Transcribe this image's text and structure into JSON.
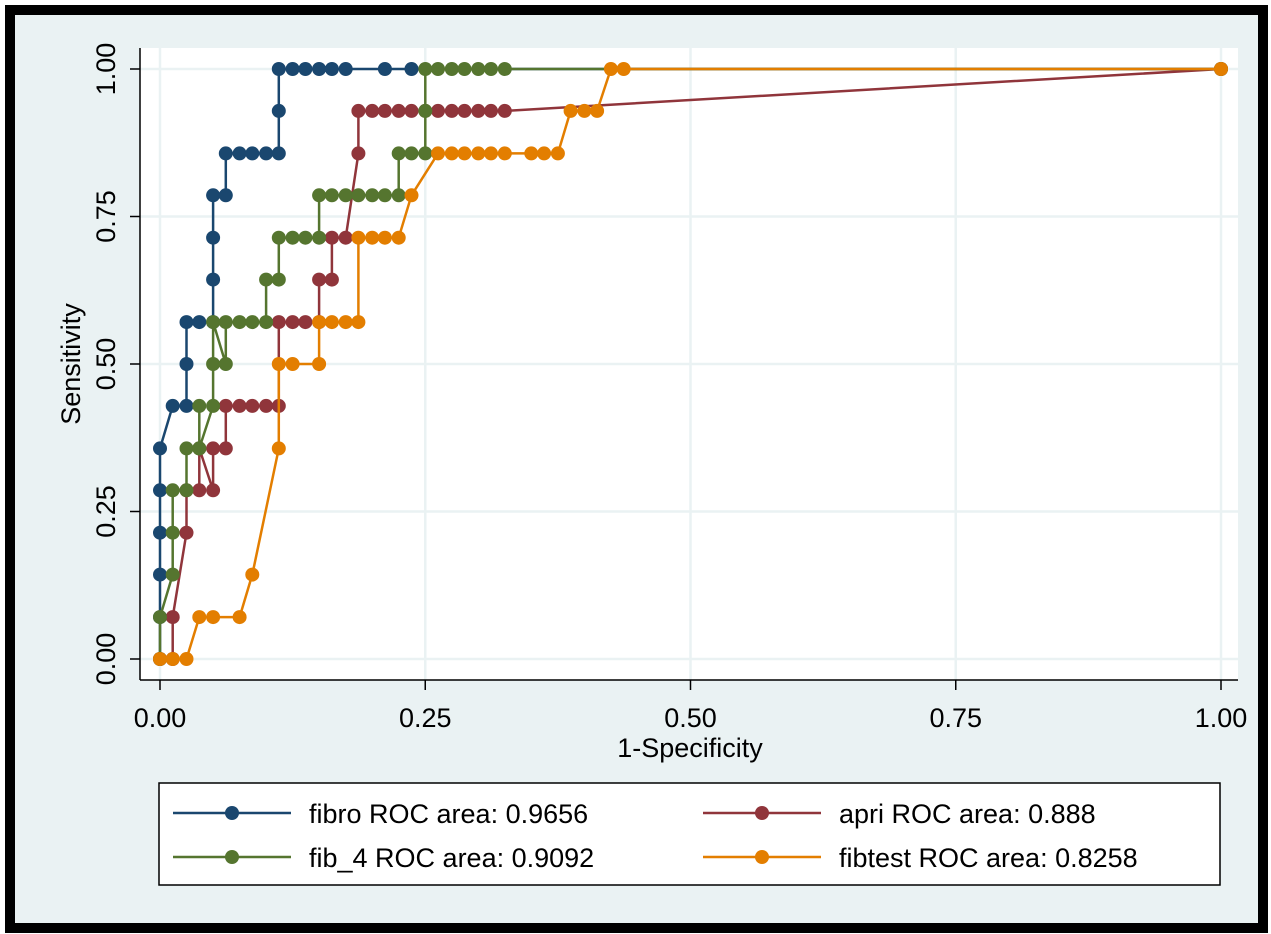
{
  "chart_data": {
    "type": "line",
    "title": "",
    "xlabel": "1-Specificity",
    "ylabel": "Sensitivity",
    "xlim": [
      0,
      1
    ],
    "ylim": [
      0,
      1
    ],
    "xticks": [
      "0.00",
      "0.25",
      "0.50",
      "0.75",
      "1.00"
    ],
    "yticks": [
      "0.00",
      "0.25",
      "0.50",
      "0.75",
      "1.00"
    ],
    "grid": true,
    "legend_position": "bottom",
    "colors": {
      "frame_bg": "#eaf2f3",
      "plot_bg": "#ffffff",
      "grid": "#eaf2f3"
    },
    "series": [
      {
        "name": "fibro ROC area: 0.9656",
        "color": "#1a476f",
        "x": [
          0,
          0,
          0,
          0,
          0,
          0,
          0.012,
          0.025,
          0.025,
          0.025,
          0.037,
          0.05,
          0.05,
          0.05,
          0.05,
          0.062,
          0.062,
          0.075,
          0.087,
          0.1,
          0.112,
          0.112,
          0.112,
          0.125,
          0.137,
          0.15,
          0.162,
          0.175,
          0.212,
          0.237,
          1
        ],
        "y": [
          0,
          0.071,
          0.143,
          0.214,
          0.286,
          0.357,
          0.429,
          0.429,
          0.5,
          0.571,
          0.571,
          0.571,
          0.643,
          0.714,
          0.786,
          0.786,
          0.857,
          0.857,
          0.857,
          0.857,
          0.857,
          0.929,
          1,
          1,
          1,
          1,
          1,
          1,
          1,
          1,
          1
        ]
      },
      {
        "name": "apri ROC area: 0.888",
        "color": "#90353b",
        "x": [
          0,
          0.012,
          0.012,
          0.025,
          0.025,
          0.037,
          0.037,
          0.05,
          0.05,
          0.062,
          0.062,
          0.075,
          0.087,
          0.1,
          0.112,
          0.112,
          0.125,
          0.137,
          0.15,
          0.15,
          0.162,
          0.162,
          0.175,
          0.187,
          0.187,
          0.2,
          0.212,
          0.225,
          0.237,
          0.25,
          0.262,
          0.275,
          0.287,
          0.3,
          0.312,
          0.325,
          1
        ],
        "y": [
          0,
          0,
          0.071,
          0.214,
          0.286,
          0.286,
          0.357,
          0.286,
          0.357,
          0.357,
          0.429,
          0.429,
          0.429,
          0.429,
          0.429,
          0.571,
          0.571,
          0.571,
          0.571,
          0.643,
          0.643,
          0.714,
          0.714,
          0.857,
          0.929,
          0.929,
          0.929,
          0.929,
          0.929,
          0.929,
          0.929,
          0.929,
          0.929,
          0.929,
          0.929,
          0.929,
          1
        ]
      },
      {
        "name": "fib_4 ROC area: 0.9092",
        "color": "#55752f",
        "x": [
          0,
          0,
          0.012,
          0.012,
          0.012,
          0.025,
          0.025,
          0.037,
          0.037,
          0.037,
          0.05,
          0.05,
          0.05,
          0.062,
          0.062,
          0.075,
          0.087,
          0.1,
          0.1,
          0.112,
          0.112,
          0.125,
          0.137,
          0.15,
          0.15,
          0.162,
          0.175,
          0.187,
          0.2,
          0.212,
          0.225,
          0.225,
          0.237,
          0.25,
          0.25,
          0.25,
          0.262,
          0.275,
          0.287,
          0.3,
          0.312,
          0.325,
          1
        ],
        "y": [
          0,
          0.071,
          0.143,
          0.214,
          0.286,
          0.286,
          0.357,
          0.357,
          0.429,
          0.357,
          0.429,
          0.5,
          0.571,
          0.5,
          0.571,
          0.571,
          0.571,
          0.571,
          0.643,
          0.643,
          0.714,
          0.714,
          0.714,
          0.714,
          0.786,
          0.786,
          0.786,
          0.786,
          0.786,
          0.786,
          0.786,
          0.857,
          0.857,
          0.857,
          0.929,
          1,
          1,
          1,
          1,
          1,
          1,
          1,
          1
        ]
      },
      {
        "name": "fibtest ROC area: 0.8258",
        "color": "#e37e00",
        "x": [
          0,
          0.012,
          0.025,
          0.037,
          0.05,
          0.075,
          0.087,
          0.112,
          0.112,
          0.125,
          0.15,
          0.15,
          0.162,
          0.175,
          0.187,
          0.187,
          0.2,
          0.212,
          0.225,
          0.237,
          0.262,
          0.275,
          0.287,
          0.3,
          0.312,
          0.325,
          0.35,
          0.362,
          0.375,
          0.387,
          0.4,
          0.412,
          0.425,
          0.437,
          1
        ],
        "y": [
          0,
          0,
          0,
          0.071,
          0.071,
          0.071,
          0.143,
          0.357,
          0.5,
          0.5,
          0.5,
          0.571,
          0.571,
          0.571,
          0.571,
          0.714,
          0.714,
          0.714,
          0.714,
          0.786,
          0.857,
          0.857,
          0.857,
          0.857,
          0.857,
          0.857,
          0.857,
          0.857,
          0.857,
          0.929,
          0.929,
          0.929,
          1,
          1,
          1
        ]
      }
    ]
  }
}
